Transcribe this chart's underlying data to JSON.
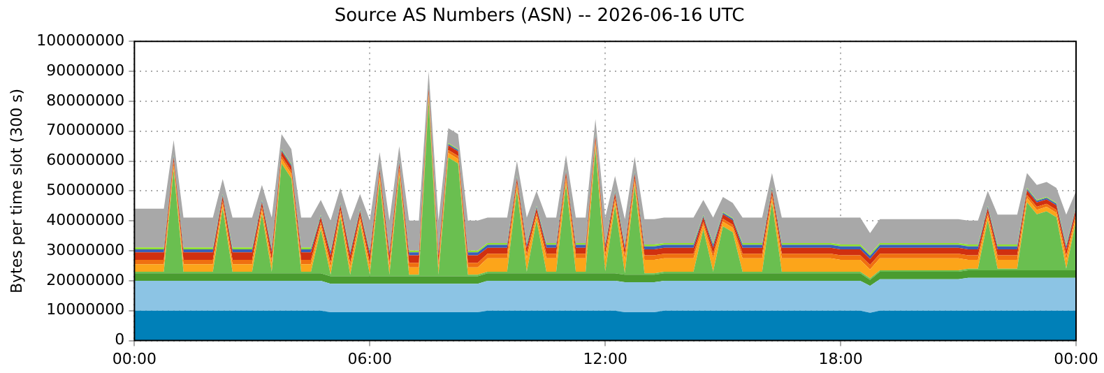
{
  "chart_data": {
    "type": "area",
    "title": "Source AS Numbers (ASN) -- 2026-06-16 UTC",
    "ylabel": "Bytes per time slot (300 s)",
    "stacked": true,
    "grid": true,
    "xlim": [
      0,
      24
    ],
    "xticks": [
      {
        "value": 0,
        "label": "00:00"
      },
      {
        "value": 6,
        "label": "06:00"
      },
      {
        "value": 12,
        "label": "12:00"
      },
      {
        "value": 18,
        "label": "18:00"
      },
      {
        "value": 24,
        "label": "00:00"
      }
    ],
    "ylim": [
      0,
      100000000
    ],
    "yticks": [
      0,
      10000000,
      20000000,
      30000000,
      40000000,
      50000000,
      60000000,
      70000000,
      80000000,
      90000000,
      100000000
    ],
    "x": [
      0,
      0.25,
      0.5,
      0.75,
      1,
      1.25,
      1.5,
      1.75,
      2,
      2.25,
      2.5,
      2.75,
      3,
      3.25,
      3.5,
      3.75,
      4,
      4.25,
      4.5,
      4.75,
      5,
      5.25,
      5.5,
      5.75,
      6,
      6.25,
      6.5,
      6.75,
      7,
      7.25,
      7.5,
      7.75,
      8,
      8.25,
      8.5,
      8.75,
      9,
      9.25,
      9.5,
      9.75,
      10,
      10.25,
      10.5,
      10.75,
      11,
      11.25,
      11.5,
      11.75,
      12,
      12.25,
      12.5,
      12.75,
      13,
      13.25,
      13.5,
      13.75,
      14,
      14.25,
      14.5,
      14.75,
      15,
      15.25,
      15.5,
      15.75,
      16,
      16.25,
      16.5,
      16.75,
      17,
      17.25,
      17.5,
      17.75,
      18,
      18.25,
      18.5,
      18.75,
      19,
      19.25,
      19.5,
      19.75,
      20,
      20.25,
      20.5,
      20.75,
      21,
      21.25,
      21.5,
      21.75,
      22,
      22.25,
      22.5,
      22.75,
      23,
      23.25,
      23.5,
      23.75,
      24
    ],
    "series": [
      {
        "color": "#0080b8",
        "values": [
          10000000,
          10000000,
          10000000,
          10000000,
          10000000,
          10000000,
          10000000,
          10000000,
          10000000,
          10000000,
          10000000,
          10000000,
          10000000,
          10000000,
          10000000,
          10000000,
          10000000,
          10000000,
          10000000,
          10000000,
          9500000,
          9500000,
          9500000,
          9500000,
          9500000,
          9500000,
          9500000,
          9500000,
          9500000,
          9500000,
          9500000,
          9500000,
          9500000,
          9500000,
          9500000,
          9500000,
          10000000,
          10000000,
          10000000,
          10000000,
          10000000,
          10000000,
          10000000,
          10000000,
          10000000,
          10000000,
          10000000,
          10000000,
          10000000,
          10000000,
          9500000,
          9500000,
          9500000,
          9500000,
          10000000,
          10000000,
          10000000,
          10000000,
          10000000,
          10000000,
          10000000,
          10000000,
          10000000,
          10000000,
          10000000,
          10000000,
          10000000,
          10000000,
          10000000,
          10000000,
          10000000,
          10000000,
          10000000,
          10000000,
          10000000,
          9300000,
          10000000,
          10000000,
          10000000,
          10000000,
          10000000,
          10000000,
          10000000,
          10000000,
          10000000,
          10000000,
          10000000,
          10000000,
          10000000,
          10000000,
          10000000,
          10000000,
          10000000,
          10000000,
          10000000,
          10000000,
          10000000
        ]
      },
      {
        "color": "#8cc4e4",
        "values": [
          10000000,
          10000000,
          10000000,
          10000000,
          10000000,
          10000000,
          10000000,
          10000000,
          10000000,
          10000000,
          10000000,
          10000000,
          10000000,
          10000000,
          10000000,
          10000000,
          10000000,
          10000000,
          10000000,
          10000000,
          9500000,
          9500000,
          9500000,
          9500000,
          9500000,
          9500000,
          9500000,
          9500000,
          9500000,
          9500000,
          9500000,
          9500000,
          9500000,
          9500000,
          9500000,
          9500000,
          10000000,
          10000000,
          10000000,
          10000000,
          10000000,
          10000000,
          10000000,
          10000000,
          10000000,
          10000000,
          10000000,
          10000000,
          10000000,
          10000000,
          10000000,
          10000000,
          10000000,
          10000000,
          10000000,
          10000000,
          10000000,
          10000000,
          10000000,
          10000000,
          10000000,
          10000000,
          10000000,
          10000000,
          10000000,
          10000000,
          10000000,
          10000000,
          10000000,
          10000000,
          10000000,
          10000000,
          10000000,
          10000000,
          10000000,
          9000000,
          10500000,
          10500000,
          10500000,
          10500000,
          10500000,
          10500000,
          10500000,
          10500000,
          10500000,
          11000000,
          11000000,
          11000000,
          11000000,
          11000000,
          11000000,
          11000000,
          11000000,
          11000000,
          11000000,
          11000000,
          11000000
        ]
      },
      {
        "color": "#4a9c30",
        "values": [
          2500000,
          2500000,
          2500000,
          2500000,
          2500000,
          2500000,
          2500000,
          2500000,
          2500000,
          2500000,
          2500000,
          2500000,
          2500000,
          2500000,
          2500000,
          2500000,
          2500000,
          2500000,
          2500000,
          2500000,
          2500000,
          2500000,
          2500000,
          2500000,
          2500000,
          2500000,
          2500000,
          2500000,
          2500000,
          2500000,
          2500000,
          2500000,
          2500000,
          2500000,
          2500000,
          2500000,
          2500000,
          2500000,
          2500000,
          2500000,
          2500000,
          2500000,
          2500000,
          2500000,
          2500000,
          2500000,
          2500000,
          2500000,
          2500000,
          2500000,
          2500000,
          2500000,
          2500000,
          2500000,
          2500000,
          2500000,
          2500000,
          2500000,
          2500000,
          2500000,
          2500000,
          2500000,
          2500000,
          2500000,
          2500000,
          2500000,
          2500000,
          2500000,
          2500000,
          2500000,
          2500000,
          2500000,
          2500000,
          2500000,
          2500000,
          2000000,
          2500000,
          2500000,
          2500000,
          2500000,
          2500000,
          2500000,
          2500000,
          2500000,
          2500000,
          2500000,
          2500000,
          2500000,
          2500000,
          2500000,
          2500000,
          2500000,
          2500000,
          2500000,
          2500000,
          2500000,
          2500000
        ]
      },
      {
        "color": "#6abf50",
        "values": [
          500000,
          500000,
          500000,
          500000,
          34700000,
          500000,
          500000,
          500000,
          500000,
          21700000,
          500000,
          500000,
          500000,
          19700000,
          500000,
          36700000,
          31700000,
          500000,
          500000,
          14700000,
          500000,
          19700000,
          500000,
          17700000,
          500000,
          31700000,
          500000,
          33700000,
          500000,
          500000,
          58700000,
          500000,
          39700000,
          37700000,
          500000,
          500000,
          500000,
          500000,
          500000,
          27700000,
          500000,
          17700000,
          500000,
          500000,
          29700000,
          500000,
          500000,
          41700000,
          500000,
          22700000,
          500000,
          29700000,
          500000,
          500000,
          500000,
          500000,
          500000,
          500000,
          14700000,
          500000,
          15700000,
          13700000,
          500000,
          500000,
          500000,
          23700000,
          500000,
          500000,
          500000,
          500000,
          500000,
          500000,
          500000,
          500000,
          500000,
          500000,
          500000,
          500000,
          500000,
          500000,
          500000,
          500000,
          500000,
          500000,
          500000,
          500000,
          500000,
          16700000,
          500000,
          500000,
          500000,
          22700000,
          18700000,
          19700000,
          17700000,
          500000,
          16700000
        ]
      },
      {
        "color": "#fca51a",
        "values": [
          2500000,
          2500000,
          2500000,
          2500000,
          1500000,
          2500000,
          2500000,
          2500000,
          2500000,
          1500000,
          2500000,
          2500000,
          2500000,
          1500000,
          2500000,
          1500000,
          1500000,
          2500000,
          2500000,
          1500000,
          2500000,
          1500000,
          2500000,
          1500000,
          2500000,
          1500000,
          2500000,
          1500000,
          2500000,
          2500000,
          1500000,
          2500000,
          1500000,
          1500000,
          2500000,
          2500000,
          4500000,
          4500000,
          4500000,
          1500000,
          4500000,
          1500000,
          4500000,
          4500000,
          1500000,
          4500000,
          4500000,
          1500000,
          4500000,
          1500000,
          4500000,
          1500000,
          4500000,
          4500000,
          4500000,
          4500000,
          4500000,
          4500000,
          1500000,
          4500000,
          1500000,
          1500000,
          4500000,
          4500000,
          4500000,
          1500000,
          4500000,
          4500000,
          4500000,
          4500000,
          4500000,
          4500000,
          4000000,
          4000000,
          4000000,
          3000000,
          4000000,
          4000000,
          4000000,
          4000000,
          4000000,
          4000000,
          4000000,
          4000000,
          4000000,
          3000000,
          3000000,
          1500000,
          3000000,
          3000000,
          3000000,
          1500000,
          1500000,
          1500000,
          1500000,
          3000000,
          1500000
        ]
      },
      {
        "color": "#f07010",
        "values": [
          1500000,
          1500000,
          1500000,
          1500000,
          1000000,
          1500000,
          1500000,
          1500000,
          1500000,
          1000000,
          1500000,
          1500000,
          1500000,
          1000000,
          1500000,
          1000000,
          1000000,
          1500000,
          1500000,
          1000000,
          1500000,
          1000000,
          1500000,
          1000000,
          1500000,
          1000000,
          1500000,
          1000000,
          1500000,
          1500000,
          1000000,
          1500000,
          1000000,
          1000000,
          1500000,
          1500000,
          1500000,
          1500000,
          1500000,
          1000000,
          1500000,
          1000000,
          1500000,
          1500000,
          1000000,
          1500000,
          1500000,
          1000000,
          1500000,
          1000000,
          1500000,
          1000000,
          1500000,
          1500000,
          1500000,
          1500000,
          1500000,
          1500000,
          1000000,
          1500000,
          1000000,
          1000000,
          1500000,
          1500000,
          1500000,
          1000000,
          1500000,
          1500000,
          1500000,
          1500000,
          1500000,
          1500000,
          1500000,
          1500000,
          1500000,
          1500000,
          1500000,
          1500000,
          1500000,
          1500000,
          1500000,
          1500000,
          1500000,
          1500000,
          1500000,
          1500000,
          1500000,
          1000000,
          1500000,
          1500000,
          1500000,
          1000000,
          1000000,
          1000000,
          1000000,
          1500000,
          1000000
        ]
      },
      {
        "color": "#d03010",
        "values": [
          2500000,
          2500000,
          2500000,
          2500000,
          1500000,
          2500000,
          2500000,
          2500000,
          2500000,
          1500000,
          2500000,
          2500000,
          2500000,
          1500000,
          2500000,
          1500000,
          1500000,
          2500000,
          2500000,
          1500000,
          2500000,
          1500000,
          2500000,
          1500000,
          2500000,
          1500000,
          2500000,
          1500000,
          2500000,
          2500000,
          1500000,
          2500000,
          1500000,
          1500000,
          2500000,
          2500000,
          2000000,
          2000000,
          2000000,
          1500000,
          2000000,
          1500000,
          2000000,
          2000000,
          1500000,
          2000000,
          2000000,
          1500000,
          2000000,
          1500000,
          2000000,
          1500000,
          2000000,
          2000000,
          2000000,
          2000000,
          2000000,
          2000000,
          1500000,
          2000000,
          1500000,
          1500000,
          2000000,
          2000000,
          2000000,
          1500000,
          2000000,
          2000000,
          2000000,
          2000000,
          2000000,
          2000000,
          2000000,
          2000000,
          2000000,
          2000000,
          2000000,
          2000000,
          2000000,
          2000000,
          2000000,
          2000000,
          2000000,
          2000000,
          2000000,
          2000000,
          2000000,
          1500000,
          2000000,
          2000000,
          2000000,
          1500000,
          1500000,
          1500000,
          1500000,
          2000000,
          1500000
        ]
      },
      {
        "color": "#3a60b8",
        "values": [
          1000000,
          1000000,
          1000000,
          1000000,
          500000,
          1000000,
          1000000,
          1000000,
          1000000,
          500000,
          1000000,
          1000000,
          1000000,
          500000,
          1000000,
          500000,
          500000,
          1000000,
          1000000,
          500000,
          1000000,
          500000,
          1000000,
          500000,
          1000000,
          500000,
          1000000,
          500000,
          1000000,
          1000000,
          500000,
          1000000,
          500000,
          500000,
          1000000,
          1000000,
          1000000,
          1000000,
          1000000,
          500000,
          1000000,
          500000,
          1000000,
          1000000,
          500000,
          1000000,
          1000000,
          500000,
          1000000,
          500000,
          1000000,
          500000,
          1000000,
          1000000,
          1000000,
          1000000,
          1000000,
          1000000,
          500000,
          1000000,
          500000,
          500000,
          1000000,
          1000000,
          1000000,
          500000,
          1000000,
          1000000,
          1000000,
          1000000,
          1000000,
          1000000,
          1000000,
          1000000,
          1000000,
          1000000,
          1000000,
          1000000,
          1000000,
          1000000,
          1000000,
          1000000,
          1000000,
          1000000,
          1000000,
          1000000,
          1000000,
          500000,
          1000000,
          1000000,
          1000000,
          500000,
          500000,
          500000,
          500000,
          1000000,
          500000
        ]
      },
      {
        "color": "#90e030",
        "values": [
          600000,
          600000,
          600000,
          600000,
          300000,
          600000,
          600000,
          600000,
          600000,
          300000,
          600000,
          600000,
          600000,
          300000,
          600000,
          300000,
          300000,
          600000,
          600000,
          300000,
          600000,
          300000,
          600000,
          300000,
          600000,
          300000,
          600000,
          300000,
          600000,
          600000,
          300000,
          600000,
          300000,
          300000,
          600000,
          600000,
          600000,
          600000,
          600000,
          300000,
          600000,
          300000,
          600000,
          600000,
          300000,
          600000,
          600000,
          300000,
          600000,
          300000,
          600000,
          300000,
          600000,
          600000,
          600000,
          600000,
          600000,
          600000,
          300000,
          600000,
          300000,
          300000,
          600000,
          600000,
          600000,
          300000,
          600000,
          600000,
          600000,
          600000,
          600000,
          600000,
          600000,
          600000,
          600000,
          600000,
          600000,
          600000,
          600000,
          600000,
          600000,
          600000,
          600000,
          600000,
          600000,
          600000,
          600000,
          300000,
          600000,
          600000,
          600000,
          300000,
          300000,
          300000,
          300000,
          600000,
          300000
        ]
      },
      {
        "color": "#a8a8a8",
        "values": [
          13000000,
          13000000,
          13000000,
          13000000,
          5000000,
          10000000,
          10000000,
          10000000,
          10000000,
          5000000,
          10000000,
          10000000,
          10000000,
          5000000,
          10000000,
          5000000,
          5000000,
          10000000,
          10000000,
          5000000,
          10000000,
          5000000,
          10000000,
          5000000,
          10000000,
          5000000,
          10000000,
          5000000,
          10000000,
          10000000,
          5000000,
          10000000,
          5000000,
          5000000,
          10000000,
          10000000,
          8500000,
          8500000,
          8500000,
          5000000,
          8500000,
          5000000,
          8500000,
          8500000,
          5000000,
          8500000,
          8500000,
          5000000,
          8500000,
          5000000,
          8500000,
          5000000,
          8500000,
          8500000,
          8500000,
          8500000,
          8500000,
          8500000,
          5000000,
          8500000,
          5000000,
          5000000,
          8500000,
          8500000,
          8500000,
          5000000,
          8500000,
          8500000,
          8500000,
          8500000,
          8500000,
          8500000,
          9000000,
          9000000,
          9000000,
          7000000,
          8000000,
          8000000,
          8000000,
          8000000,
          8000000,
          8000000,
          8000000,
          8000000,
          8000000,
          8000000,
          8000000,
          5000000,
          10000000,
          10000000,
          10000000,
          5000000,
          5000000,
          5000000,
          5000000,
          10000000,
          5000000
        ]
      }
    ]
  }
}
